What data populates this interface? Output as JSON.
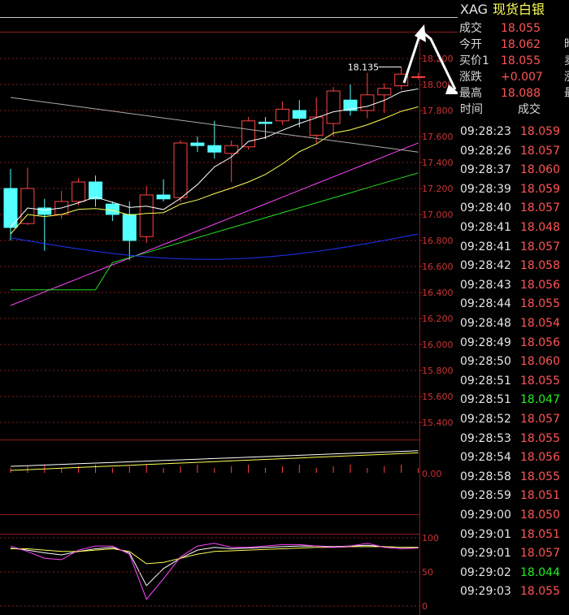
{
  "symbol": "XAG",
  "name": "现货白银",
  "quote": [
    {
      "label": "成交",
      "value": "18.055",
      "trunc": ""
    },
    {
      "label": "今开",
      "value": "18.062",
      "trunc": "昨"
    },
    {
      "label": "买价1",
      "value": "18.055",
      "trunc": "卖"
    },
    {
      "label": "涨跌",
      "value": "+0.007",
      "trunc": "涨"
    },
    {
      "label": "最高",
      "value": "18.088",
      "trunc": "最"
    }
  ],
  "ticks_header": {
    "time": "时间",
    "price": "成交"
  },
  "ticks": [
    {
      "time": "09:28:23",
      "price": "18.059",
      "dir": "up"
    },
    {
      "time": "09:28:26",
      "price": "18.057",
      "dir": "up"
    },
    {
      "time": "09:28:37",
      "price": "18.060",
      "dir": "up"
    },
    {
      "time": "09:28:39",
      "price": "18.059",
      "dir": "up"
    },
    {
      "time": "09:28:40",
      "price": "18.057",
      "dir": "up"
    },
    {
      "time": "09:28:41",
      "price": "18.048",
      "dir": "up"
    },
    {
      "time": "09:28:41",
      "price": "18.057",
      "dir": "up"
    },
    {
      "time": "09:28:42",
      "price": "18.058",
      "dir": "up"
    },
    {
      "time": "09:28:43",
      "price": "18.056",
      "dir": "up"
    },
    {
      "time": "09:28:44",
      "price": "18.055",
      "dir": "up"
    },
    {
      "time": "09:28:48",
      "price": "18.054",
      "dir": "up"
    },
    {
      "time": "09:28:49",
      "price": "18.056",
      "dir": "up"
    },
    {
      "time": "09:28:50",
      "price": "18.060",
      "dir": "up"
    },
    {
      "time": "09:28:51",
      "price": "18.055",
      "dir": "up"
    },
    {
      "time": "09:28:51",
      "price": "18.047",
      "dir": "down"
    },
    {
      "time": "09:28:52",
      "price": "18.057",
      "dir": "up"
    },
    {
      "time": "09:28:53",
      "price": "18.055",
      "dir": "up"
    },
    {
      "time": "09:28:54",
      "price": "18.056",
      "dir": "up"
    },
    {
      "time": "09:28:58",
      "price": "18.055",
      "dir": "up"
    },
    {
      "time": "09:28:59",
      "price": "18.051",
      "dir": "up"
    },
    {
      "time": "09:29:00",
      "price": "18.050",
      "dir": "up"
    },
    {
      "time": "09:29:01",
      "price": "18.051",
      "dir": "up"
    },
    {
      "time": "09:29:01",
      "price": "18.057",
      "dir": "up"
    },
    {
      "time": "09:29:02",
      "price": "18.044",
      "dir": "down"
    },
    {
      "time": "09:29:03",
      "price": "18.055",
      "dir": "up"
    }
  ],
  "chart_data": {
    "type": "candlestick",
    "price_axis": {
      "ticks": [
        "18.200",
        "18.000",
        "17.800",
        "17.600",
        "17.400",
        "17.200",
        "17.000",
        "16.800",
        "16.600",
        "16.400",
        "16.200",
        "16.000",
        "15.800",
        "15.600",
        "15.400"
      ],
      "ylim": [
        15.4,
        18.3
      ]
    },
    "high_label": "18.135",
    "candles": [
      {
        "o": 17.2,
        "h": 17.35,
        "l": 16.8,
        "c": 16.9
      },
      {
        "o": 16.93,
        "h": 17.36,
        "l": 16.92,
        "c": 17.2
      },
      {
        "o": 17.05,
        "h": 17.12,
        "l": 16.72,
        "c": 17.0
      },
      {
        "o": 17.0,
        "h": 17.18,
        "l": 16.97,
        "c": 17.1
      },
      {
        "o": 17.1,
        "h": 17.28,
        "l": 17.07,
        "c": 17.25
      },
      {
        "o": 17.25,
        "h": 17.3,
        "l": 17.06,
        "c": 17.12
      },
      {
        "o": 17.08,
        "h": 17.1,
        "l": 16.95,
        "c": 17.0
      },
      {
        "o": 17.0,
        "h": 17.1,
        "l": 16.65,
        "c": 16.8
      },
      {
        "o": 16.83,
        "h": 17.22,
        "l": 16.78,
        "c": 17.15
      },
      {
        "o": 17.15,
        "h": 17.27,
        "l": 17.1,
        "c": 17.12
      },
      {
        "o": 17.13,
        "h": 17.57,
        "l": 17.1,
        "c": 17.55
      },
      {
        "o": 17.55,
        "h": 17.6,
        "l": 17.48,
        "c": 17.53
      },
      {
        "o": 17.53,
        "h": 17.72,
        "l": 17.43,
        "c": 17.48
      },
      {
        "o": 17.47,
        "h": 17.57,
        "l": 17.25,
        "c": 17.53
      },
      {
        "o": 17.52,
        "h": 17.75,
        "l": 17.5,
        "c": 17.72
      },
      {
        "o": 17.71,
        "h": 17.75,
        "l": 17.58,
        "c": 17.7
      },
      {
        "o": 17.72,
        "h": 17.87,
        "l": 17.69,
        "c": 17.81
      },
      {
        "o": 17.8,
        "h": 17.88,
        "l": 17.67,
        "c": 17.74
      },
      {
        "o": 17.61,
        "h": 17.9,
        "l": 17.55,
        "c": 17.75
      },
      {
        "o": 17.7,
        "h": 17.98,
        "l": 17.6,
        "c": 17.95
      },
      {
        "o": 17.88,
        "h": 18.0,
        "l": 17.76,
        "c": 17.8
      },
      {
        "o": 17.8,
        "h": 18.09,
        "l": 17.74,
        "c": 17.92
      },
      {
        "o": 17.92,
        "h": 18.01,
        "l": 17.78,
        "c": 17.97
      },
      {
        "o": 17.99,
        "h": 18.135,
        "l": 17.96,
        "c": 18.08
      },
      {
        "o": 18.06,
        "h": 18.09,
        "l": 18.04,
        "c": 18.06
      }
    ],
    "ma_colors": [
      "#ffffff",
      "#ffff55",
      "#ff44ff",
      "#22dd22",
      "#2233ff",
      "#aaaaaa"
    ],
    "macd_ticks": [
      "0.00"
    ],
    "kdj_ticks": [
      "100",
      "50",
      "0"
    ],
    "colors": {
      "up": "#ff4444",
      "down": "#55ffff",
      "grid": "#8b1a1a",
      "axis_text": "#cc3333"
    }
  }
}
